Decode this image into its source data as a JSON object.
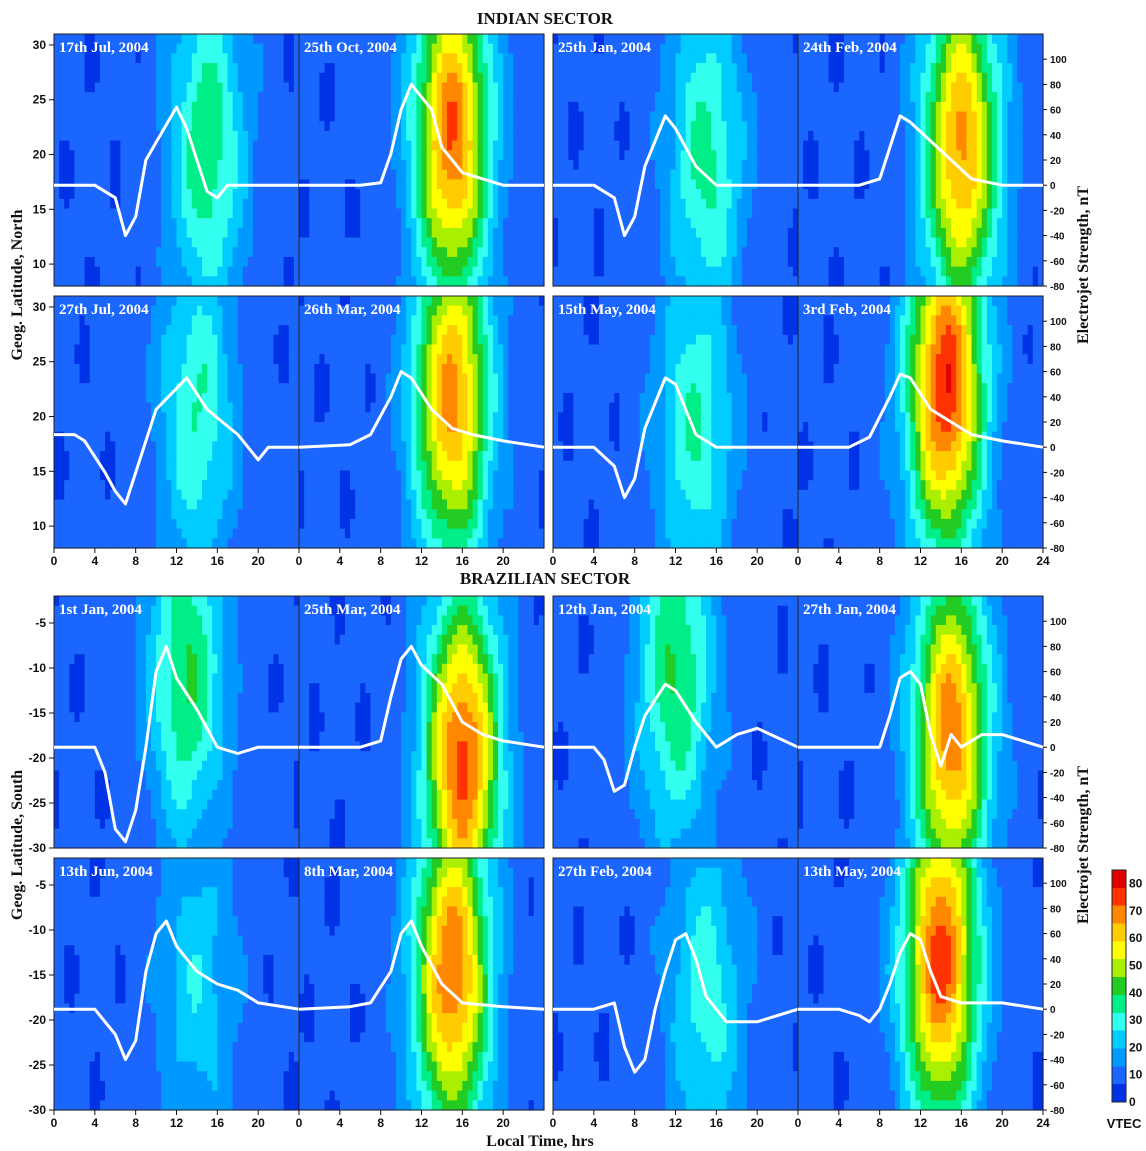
{
  "figure": {
    "top_title": "INDIAN SECTOR",
    "bottom_title": "BRAZILIAN SECTOR",
    "ylabel_top": "Geog. Latitude, North",
    "ylabel_bottom": "Geog. Latitude, South",
    "right_label": "Electrojet Strength, nT",
    "xlabel": "Local Time, hrs",
    "colorbar_label": "VTEC"
  },
  "chart_data": {
    "type": "heatmap",
    "x_ticks": [
      "0",
      "4",
      "8",
      "12",
      "16",
      "20",
      "24"
    ],
    "lat_north_ticks": [
      "10",
      "15",
      "20",
      "25",
      "30"
    ],
    "lat_south_ticks": [
      "-5",
      "-10",
      "-15",
      "-20",
      "-25",
      "-30"
    ],
    "ej_ticks": [
      "100",
      "80",
      "60",
      "40",
      "20",
      "0",
      "-20",
      "-40",
      "-60",
      "-80"
    ],
    "colorbar_ticks": [
      "0",
      "10",
      "20",
      "30",
      "40",
      "50",
      "60",
      "70",
      "80"
    ],
    "colorbar_range": [
      0,
      85
    ],
    "colors": [
      "#0033e6",
      "#1a66ff",
      "#0099ff",
      "#00ccff",
      "#33ffee",
      "#00ee88",
      "#22cc22",
      "#aaee00",
      "#ffff00",
      "#ffcc00",
      "#ff8800",
      "#ff3300",
      "#e00000"
    ],
    "panels": [
      {
        "label": "17th Jul, 2004",
        "row": 0,
        "col": 0,
        "peak": 38,
        "peak_lt": 15,
        "peak_lat": 0.55,
        "ej_t": [
          0,
          4,
          6,
          7,
          8,
          9,
          12,
          13,
          15,
          16,
          17,
          20,
          24
        ],
        "ej_v": [
          0,
          0,
          -10,
          -40,
          -25,
          20,
          62,
          45,
          -5,
          -10,
          0,
          0,
          0
        ]
      },
      {
        "label": "25th Oct, 2004",
        "row": 0,
        "col": 1,
        "peak": 72,
        "peak_lt": 15,
        "peak_lat": 0.6,
        "ej_t": [
          0,
          6,
          8,
          9,
          10,
          11,
          13,
          14,
          16,
          18,
          20,
          24
        ],
        "ej_v": [
          0,
          0,
          2,
          25,
          60,
          80,
          60,
          30,
          10,
          5,
          0,
          0
        ]
      },
      {
        "label": "25th Jan, 2004",
        "row": 0,
        "col": 2,
        "peak": 35,
        "peak_lt": 15,
        "peak_lat": 0.5,
        "ej_t": [
          0,
          4,
          6,
          7,
          8,
          9,
          11,
          12,
          14,
          16,
          20,
          24
        ],
        "ej_v": [
          0,
          0,
          -10,
          -40,
          -25,
          15,
          55,
          45,
          15,
          0,
          0,
          0
        ]
      },
      {
        "label": "24th Feb, 2004",
        "row": 0,
        "col": 3,
        "peak": 68,
        "peak_lt": 16,
        "peak_lat": 0.55,
        "ej_t": [
          0,
          6,
          8,
          9,
          10,
          11,
          13,
          15,
          17,
          20,
          24
        ],
        "ej_v": [
          0,
          0,
          5,
          30,
          55,
          50,
          35,
          20,
          5,
          0,
          0
        ]
      },
      {
        "label": "27th Jul, 2004",
        "row": 1,
        "col": 0,
        "peak": 33,
        "peak_lt": 14,
        "peak_lat": 0.55,
        "ej_t": [
          0,
          2,
          3,
          5,
          6,
          7,
          8,
          10,
          13,
          15,
          18,
          20,
          21,
          24
        ],
        "ej_v": [
          10,
          10,
          5,
          -20,
          -35,
          -45,
          -20,
          30,
          55,
          30,
          10,
          -10,
          0,
          0
        ]
      },
      {
        "label": "26th Mar, 2004",
        "row": 1,
        "col": 1,
        "peak": 68,
        "peak_lt": 15,
        "peak_lat": 0.6,
        "ej_t": [
          0,
          5,
          7,
          9,
          10,
          11,
          13,
          15,
          17,
          20,
          24
        ],
        "ej_v": [
          0,
          2,
          10,
          40,
          60,
          55,
          30,
          15,
          10,
          5,
          0
        ]
      },
      {
        "label": "15th May, 2004",
        "row": 1,
        "col": 2,
        "peak": 33,
        "peak_lt": 14,
        "peak_lat": 0.5,
        "ej_t": [
          0,
          4,
          6,
          7,
          8,
          9,
          11,
          12,
          14,
          16,
          20,
          24
        ],
        "ej_v": [
          0,
          0,
          -15,
          -40,
          -25,
          15,
          55,
          50,
          10,
          0,
          0,
          0
        ]
      },
      {
        "label": "3rd Feb, 2004",
        "row": 1,
        "col": 3,
        "peak": 78,
        "peak_lt": 14.5,
        "peak_lat": 0.65,
        "ej_t": [
          0,
          5,
          7,
          9,
          10,
          11,
          13,
          15,
          17,
          20,
          24
        ],
        "ej_v": [
          0,
          0,
          8,
          40,
          58,
          55,
          30,
          20,
          10,
          5,
          0
        ]
      },
      {
        "label": "1st Jan, 2004",
        "row": 2,
        "col": 0,
        "peak": 40,
        "peak_lt": 13,
        "peak_lat": 0.7,
        "ej_t": [
          0,
          4,
          5,
          6,
          7,
          8,
          9,
          10,
          11,
          12,
          14,
          16,
          18,
          20,
          24
        ],
        "ej_v": [
          0,
          0,
          -20,
          -65,
          -75,
          -50,
          0,
          60,
          80,
          55,
          30,
          0,
          -5,
          0,
          0
        ]
      },
      {
        "label": "25th Mar, 2004",
        "row": 2,
        "col": 1,
        "peak": 75,
        "peak_lt": 16,
        "peak_lat": 0.35,
        "ej_t": [
          0,
          6,
          8,
          9,
          10,
          11,
          12,
          14,
          16,
          18,
          20,
          24
        ],
        "ej_v": [
          0,
          0,
          5,
          40,
          70,
          80,
          65,
          50,
          20,
          10,
          5,
          0
        ]
      },
      {
        "label": "12th Jan, 2004",
        "row": 2,
        "col": 2,
        "peak": 40,
        "peak_lt": 12,
        "peak_lat": 0.7,
        "ej_t": [
          0,
          4,
          5,
          6,
          7,
          8,
          9,
          11,
          12,
          14,
          16,
          18,
          20,
          24
        ],
        "ej_v": [
          0,
          0,
          -10,
          -35,
          -30,
          0,
          25,
          50,
          45,
          20,
          0,
          10,
          15,
          0
        ]
      },
      {
        "label": "27th Jan, 2004",
        "row": 2,
        "col": 3,
        "peak": 70,
        "peak_lt": 15,
        "peak_lat": 0.45,
        "ej_t": [
          0,
          6,
          8,
          9,
          10,
          11,
          12,
          13,
          14,
          15,
          16,
          18,
          20,
          24
        ],
        "ej_v": [
          0,
          0,
          0,
          25,
          55,
          60,
          50,
          10,
          -15,
          10,
          0,
          10,
          10,
          0
        ]
      },
      {
        "label": "13th Jun, 2004",
        "row": 3,
        "col": 0,
        "peak": 25,
        "peak_lt": 14,
        "peak_lat": 0.5,
        "ej_t": [
          0,
          4,
          5,
          6,
          7,
          8,
          9,
          10,
          11,
          12,
          14,
          16,
          18,
          20,
          24
        ],
        "ej_v": [
          0,
          0,
          -10,
          -20,
          -40,
          -25,
          30,
          60,
          70,
          50,
          30,
          20,
          15,
          5,
          0
        ]
      },
      {
        "label": "8th Mar, 2004",
        "row": 3,
        "col": 1,
        "peak": 72,
        "peak_lt": 15,
        "peak_lat": 0.55,
        "ej_t": [
          0,
          5,
          7,
          9,
          10,
          11,
          12,
          14,
          16,
          20,
          24
        ],
        "ej_v": [
          0,
          2,
          5,
          30,
          60,
          70,
          50,
          20,
          5,
          2,
          0
        ]
      },
      {
        "label": "27th Feb, 2004",
        "row": 3,
        "col": 2,
        "peak": 30,
        "peak_lt": 15,
        "peak_lat": 0.45,
        "ej_t": [
          0,
          4,
          6,
          7,
          8,
          9,
          10,
          11,
          12,
          13,
          14,
          15,
          17,
          20,
          24
        ],
        "ej_v": [
          0,
          0,
          5,
          -30,
          -50,
          -40,
          0,
          30,
          55,
          60,
          40,
          10,
          -10,
          -10,
          0
        ]
      },
      {
        "label": "13th May, 2004",
        "row": 3,
        "col": 3,
        "peak": 75,
        "peak_lt": 14,
        "peak_lat": 0.6,
        "ej_t": [
          0,
          4,
          6,
          7,
          8,
          9,
          10,
          11,
          12,
          13,
          14,
          16,
          20,
          24
        ],
        "ej_v": [
          0,
          0,
          -5,
          -10,
          0,
          20,
          45,
          60,
          55,
          30,
          10,
          5,
          5,
          0
        ]
      }
    ]
  }
}
